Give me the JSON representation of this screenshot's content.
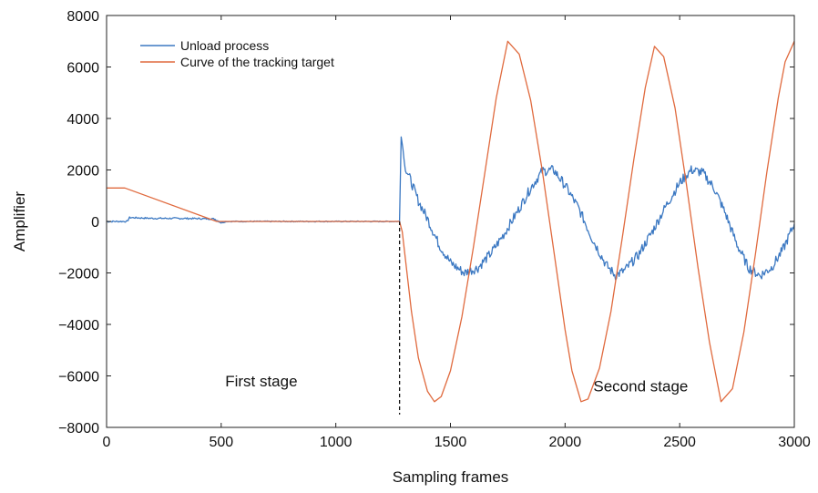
{
  "chart_data": {
    "type": "line",
    "xlabel": "Sampling frames",
    "ylabel": "Amplifier",
    "xlim": [
      0,
      3000
    ],
    "ylim": [
      -8000,
      8000
    ],
    "xticks": [
      0,
      500,
      1000,
      1500,
      2000,
      2500,
      3000
    ],
    "yticks": [
      -8000,
      -6000,
      -4000,
      -2000,
      0,
      2000,
      4000,
      6000,
      8000
    ],
    "xtick_labels": [
      "0",
      "500",
      "1000",
      "1500",
      "2000",
      "2500",
      "3000"
    ],
    "ytick_labels": [
      "−8000",
      "−6000",
      "−4000",
      "−2000",
      "0",
      "2000",
      "4000",
      "6000",
      "8000"
    ],
    "grid": false,
    "legend_position": "top-left",
    "series": [
      {
        "name": "Unload process",
        "color": "#3b78c2",
        "x": [
          0,
          90,
          100,
          200,
          300,
          400,
          470,
          500,
          520,
          600,
          800,
          1000,
          1200,
          1278,
          1285,
          1293,
          1300,
          1330,
          1360,
          1400,
          1450,
          1500,
          1560,
          1620,
          1680,
          1740,
          1800,
          1850,
          1900,
          1950,
          2000,
          2060,
          2120,
          2180,
          2220,
          2260,
          2320,
          2380,
          2440,
          2500,
          2550,
          2600,
          2650,
          2700,
          2750,
          2800,
          2850,
          2900,
          2950,
          3000
        ],
        "y": [
          0,
          0,
          150,
          120,
          120,
          110,
          100,
          -50,
          0,
          0,
          0,
          0,
          0,
          0,
          3300,
          2800,
          2200,
          1500,
          800,
          100,
          -900,
          -1600,
          -2000,
          -1800,
          -1200,
          -400,
          500,
          1300,
          1950,
          2000,
          1400,
          500,
          -700,
          -1700,
          -2100,
          -1900,
          -1300,
          -400,
          600,
          1500,
          2000,
          1900,
          1300,
          300,
          -900,
          -1800,
          -2100,
          -1800,
          -1100,
          -100
        ]
      },
      {
        "name": "Curve of the tracking target",
        "color": "#e06a3e",
        "x": [
          0,
          80,
          480,
          1278,
          1290,
          1330,
          1360,
          1400,
          1430,
          1460,
          1500,
          1550,
          1600,
          1650,
          1700,
          1750,
          1800,
          1850,
          1900,
          1950,
          2000,
          2030,
          2070,
          2100,
          2150,
          2200,
          2250,
          2300,
          2350,
          2390,
          2430,
          2480,
          2530,
          2580,
          2630,
          2680,
          2730,
          2780,
          2830,
          2880,
          2930,
          2960,
          3000
        ],
        "y": [
          1300,
          1300,
          0,
          0,
          -400,
          -3500,
          -5300,
          -6600,
          -7000,
          -6800,
          -5800,
          -3700,
          -1000,
          1900,
          4800,
          7000,
          6500,
          4700,
          2000,
          -1100,
          -4200,
          -5800,
          -7000,
          -6900,
          -5700,
          -3500,
          -600,
          2400,
          5200,
          6800,
          6400,
          4400,
          1400,
          -1800,
          -4700,
          -7000,
          -6500,
          -4300,
          -1300,
          1900,
          4800,
          6200,
          7000
        ]
      }
    ],
    "annotations": [
      {
        "text": "First stage",
        "x": 675,
        "y": -6400
      },
      {
        "text": "Second stage",
        "x": 2330,
        "y": -6600
      }
    ],
    "divider": {
      "x": 1278,
      "y_from": 0,
      "y_to": -7500,
      "style": "dashed"
    }
  }
}
